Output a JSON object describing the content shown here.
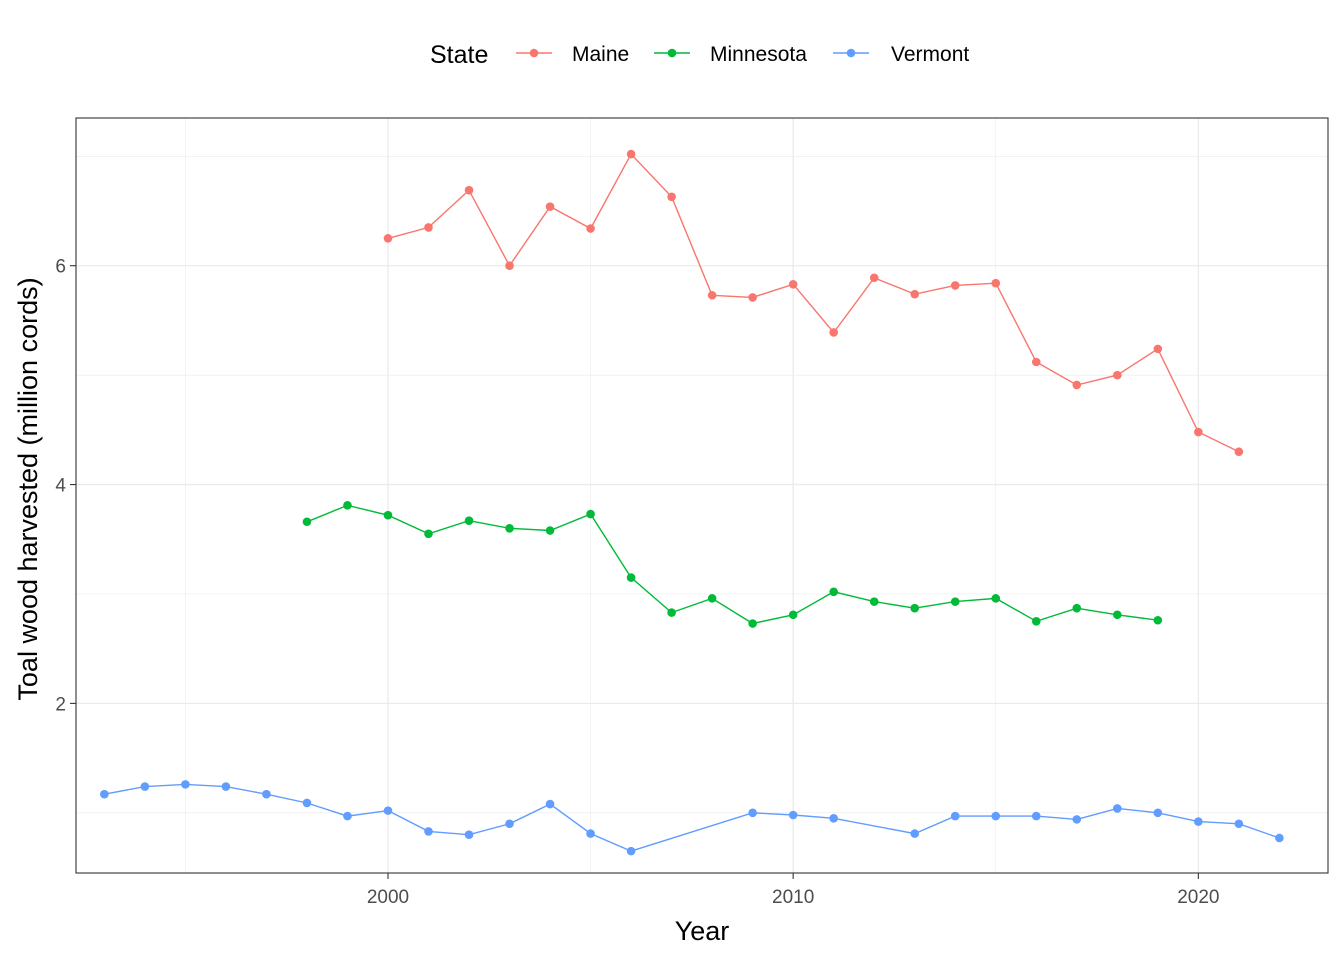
{
  "chart_data": {
    "type": "line",
    "xlabel": "Year",
    "ylabel": "Toal wood harvested (million cords)",
    "legend_title": "State",
    "legend_position": "top",
    "grid": true,
    "xlim": [
      1992.3,
      2023.2
    ],
    "ylim": [
      0.45,
      7.35
    ],
    "x_ticks": [
      2000,
      2010,
      2020
    ],
    "y_ticks": [
      2,
      4,
      6
    ],
    "x_tick_labels": [
      "2000",
      "2010",
      "2020"
    ],
    "y_tick_labels": [
      "2",
      "4",
      "6"
    ],
    "series": [
      {
        "name": "Maine",
        "color": "#F8766D",
        "x": [
          2000,
          2001,
          2002,
          2003,
          2004,
          2005,
          2006,
          2007,
          2008,
          2009,
          2010,
          2011,
          2012,
          2013,
          2014,
          2015,
          2016,
          2017,
          2018,
          2019,
          2020,
          2021
        ],
        "y": [
          6.25,
          6.35,
          6.69,
          6.0,
          6.54,
          6.34,
          7.02,
          6.63,
          5.73,
          5.71,
          5.83,
          5.39,
          5.89,
          5.74,
          5.82,
          5.84,
          5.12,
          4.91,
          5.0,
          5.24,
          4.48,
          4.3
        ]
      },
      {
        "name": "Minnesota",
        "color": "#00BA38",
        "x": [
          1998,
          1999,
          2000,
          2001,
          2002,
          2003,
          2004,
          2005,
          2006,
          2007,
          2008,
          2009,
          2010,
          2011,
          2012,
          2013,
          2014,
          2015,
          2016,
          2017,
          2018,
          2019
        ],
        "y": [
          3.66,
          3.81,
          3.72,
          3.55,
          3.67,
          3.6,
          3.58,
          3.73,
          3.15,
          2.83,
          2.96,
          2.73,
          2.81,
          3.02,
          2.93,
          2.87,
          2.93,
          2.96,
          2.75,
          2.87,
          2.81,
          2.76
        ]
      },
      {
        "name": "Vermont",
        "color": "#619CFF",
        "x": [
          1993,
          1994,
          1995,
          1996,
          1997,
          1998,
          1999,
          2000,
          2001,
          2002,
          2003,
          2004,
          2005,
          2006,
          2009,
          2010,
          2011,
          2013,
          2014,
          2015,
          2016,
          2017,
          2018,
          2019,
          2020,
          2021,
          2022
        ],
        "y": [
          1.17,
          1.24,
          1.26,
          1.24,
          1.17,
          1.09,
          0.97,
          1.02,
          0.83,
          0.8,
          0.9,
          1.08,
          0.81,
          0.65,
          1.0,
          0.98,
          0.95,
          0.81,
          0.97,
          0.97,
          0.97,
          0.94,
          1.04,
          1.0,
          0.92,
          0.9,
          0.77
        ]
      }
    ]
  }
}
